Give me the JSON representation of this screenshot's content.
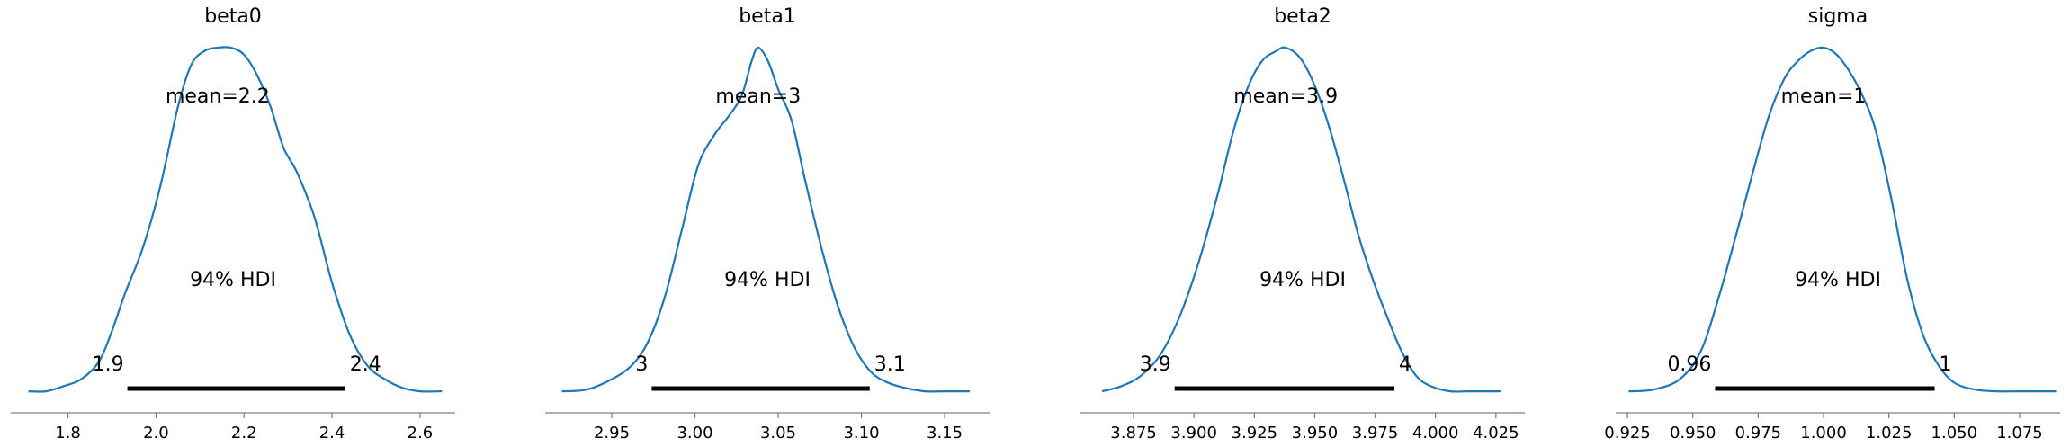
{
  "figure": {
    "curve_color": "#1f77b4",
    "hdi_color": "#000000",
    "axis_color": "#808080"
  },
  "chart_data": [
    {
      "type": "area",
      "title": "beta0",
      "mean_label": "mean=2.2",
      "hdi_label": "94% HDI",
      "hdi": [
        1.935,
        2.43
      ],
      "hdi_low_label": "1.9",
      "hdi_high_label": "2.4",
      "xlim": [
        1.67,
        2.68
      ],
      "ylim": [
        0,
        1
      ],
      "xticks": [
        1.8,
        2.0,
        2.2,
        2.4,
        2.6
      ],
      "xtick_labels": [
        "1.8",
        "2.0",
        "2.2",
        "2.4",
        "2.6"
      ],
      "x": [
        1.71,
        1.75,
        1.79,
        1.83,
        1.87,
        1.9,
        1.93,
        1.97,
        2.01,
        2.05,
        2.08,
        2.11,
        2.14,
        2.17,
        2.2,
        2.23,
        2.26,
        2.29,
        2.32,
        2.36,
        2.4,
        2.44,
        2.48,
        2.52,
        2.56,
        2.6,
        2.65
      ],
      "density": [
        0.005,
        0.005,
        0.02,
        0.04,
        0.09,
        0.18,
        0.29,
        0.42,
        0.6,
        0.83,
        0.95,
        0.99,
        1.0,
        1.0,
        0.98,
        0.92,
        0.83,
        0.71,
        0.64,
        0.51,
        0.32,
        0.17,
        0.08,
        0.04,
        0.015,
        0.005,
        0.005
      ]
    },
    {
      "type": "area",
      "title": "beta1",
      "mean_label": "mean=3",
      "hdi_label": "94% HDI",
      "hdi": [
        2.974,
        3.105
      ],
      "hdi_low_label": "3",
      "hdi_high_label": "3.1",
      "xlim": [
        2.91,
        3.177
      ],
      "ylim": [
        0,
        1
      ],
      "xticks": [
        2.95,
        3.0,
        3.05,
        3.1,
        3.15
      ],
      "xtick_labels": [
        "2.95",
        "3.00",
        "3.05",
        "3.10",
        "3.15"
      ],
      "x": [
        2.92,
        2.935,
        2.95,
        2.962,
        2.972,
        2.982,
        2.992,
        3.002,
        3.012,
        3.02,
        3.028,
        3.034,
        3.038,
        3.044,
        3.05,
        3.058,
        3.066,
        3.076,
        3.086,
        3.096,
        3.106,
        3.116,
        3.126,
        3.138,
        3.15,
        3.165
      ],
      "density": [
        0.005,
        0.01,
        0.04,
        0.08,
        0.15,
        0.28,
        0.47,
        0.66,
        0.75,
        0.8,
        0.86,
        0.96,
        1.0,
        0.96,
        0.88,
        0.79,
        0.62,
        0.42,
        0.25,
        0.13,
        0.06,
        0.03,
        0.015,
        0.005,
        0.005,
        0.005
      ]
    },
    {
      "type": "area",
      "title": "beta2",
      "mean_label": "mean=3.9",
      "hdi_label": "94% HDI",
      "hdi": [
        3.892,
        3.983
      ],
      "hdi_low_label": "3.9",
      "hdi_high_label": "4",
      "xlim": [
        3.853,
        4.037
      ],
      "ylim": [
        0,
        1
      ],
      "xticks": [
        3.875,
        3.9,
        3.925,
        3.95,
        3.975,
        4.0,
        4.025
      ],
      "xtick_labels": [
        "3.875",
        "3.900",
        "3.925",
        "3.950",
        "3.975",
        "4.000",
        "4.025"
      ],
      "x": [
        3.862,
        3.87,
        3.878,
        3.886,
        3.894,
        3.902,
        3.91,
        3.916,
        3.922,
        3.928,
        3.934,
        3.938,
        3.944,
        3.95,
        3.956,
        3.962,
        3.968,
        3.974,
        3.98,
        3.986,
        3.992,
        3.998,
        4.006,
        4.014,
        4.027
      ],
      "density": [
        0.005,
        0.02,
        0.05,
        0.11,
        0.22,
        0.38,
        0.58,
        0.75,
        0.88,
        0.96,
        0.99,
        1.0,
        0.97,
        0.89,
        0.77,
        0.62,
        0.46,
        0.33,
        0.22,
        0.12,
        0.05,
        0.02,
        0.005,
        0.005,
        0.005
      ]
    },
    {
      "type": "area",
      "title": "sigma",
      "mean_label": "mean=1",
      "hdi_label": "94% HDI",
      "hdi": [
        0.9585,
        1.0425
      ],
      "hdi_low_label": "0.96",
      "hdi_high_label": "1",
      "xlim": [
        0.9205,
        1.0905
      ],
      "ylim": [
        0,
        1
      ],
      "xticks": [
        0.925,
        0.95,
        0.975,
        1.0,
        1.025,
        1.05,
        1.075
      ],
      "xtick_labels": [
        "0.925",
        "0.950",
        "0.975",
        "1.000",
        "1.025",
        "1.050",
        "1.075"
      ],
      "x": [
        0.9255,
        0.935,
        0.945,
        0.953,
        0.96,
        0.967,
        0.973,
        0.979,
        0.985,
        0.99,
        0.995,
        1.0,
        1.005,
        1.01,
        1.015,
        1.02,
        1.026,
        1.032,
        1.038,
        1.044,
        1.05,
        1.058,
        1.066,
        1.076,
        1.089
      ],
      "density": [
        0.005,
        0.01,
        0.04,
        0.12,
        0.28,
        0.47,
        0.64,
        0.8,
        0.91,
        0.96,
        0.99,
        1.0,
        0.98,
        0.93,
        0.86,
        0.76,
        0.56,
        0.33,
        0.17,
        0.08,
        0.03,
        0.01,
        0.005,
        0.005,
        0.005
      ]
    }
  ]
}
